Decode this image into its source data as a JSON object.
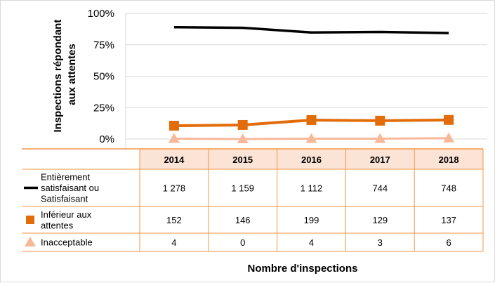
{
  "chart_data": {
    "type": "line",
    "ylabel": "Inspections répondant aux attentes",
    "ylabel_lines": [
      "Inspections répondant",
      "aux attentes"
    ],
    "xlabel": "Nombre d'inspections",
    "y_ticks": [
      "100%",
      "75%",
      "50%",
      "25%",
      "0%"
    ],
    "y_tick_values": [
      100,
      75,
      50,
      25,
      0
    ],
    "ylim": [
      0,
      100
    ],
    "categories": [
      "2014",
      "2015",
      "2016",
      "2017",
      "2018"
    ],
    "grid": true,
    "legend": "table-left",
    "series": [
      {
        "name": "Entièrement satisfaisant ou Satisfaisant",
        "legend_lines": [
          "Entièrement",
          "satisfaisant  ou",
          "Satisfaisant"
        ],
        "values": [
          89,
          88.5,
          84.8,
          85.2,
          84.3
        ],
        "counts": [
          "1 278",
          "1 159",
          "1 112",
          "744",
          "748"
        ],
        "color": "#000000",
        "marker": "none"
      },
      {
        "name": "Inférieur aux attentes",
        "legend_lines": [
          "Inférieur aux",
          "attentes"
        ],
        "values": [
          10.6,
          11.2,
          15.1,
          14.6,
          15.2
        ],
        "counts": [
          "152",
          "146",
          "199",
          "129",
          "137"
        ],
        "color": "#e36c0a",
        "marker": "square"
      },
      {
        "name": "Inacceptable",
        "legend_lines": [
          "Inacceptable"
        ],
        "values": [
          0.3,
          0,
          0.3,
          0.3,
          0.7
        ],
        "counts": [
          "4",
          "0",
          "4",
          "3",
          "6"
        ],
        "color": "#f8b89a",
        "marker": "triangle"
      }
    ]
  }
}
